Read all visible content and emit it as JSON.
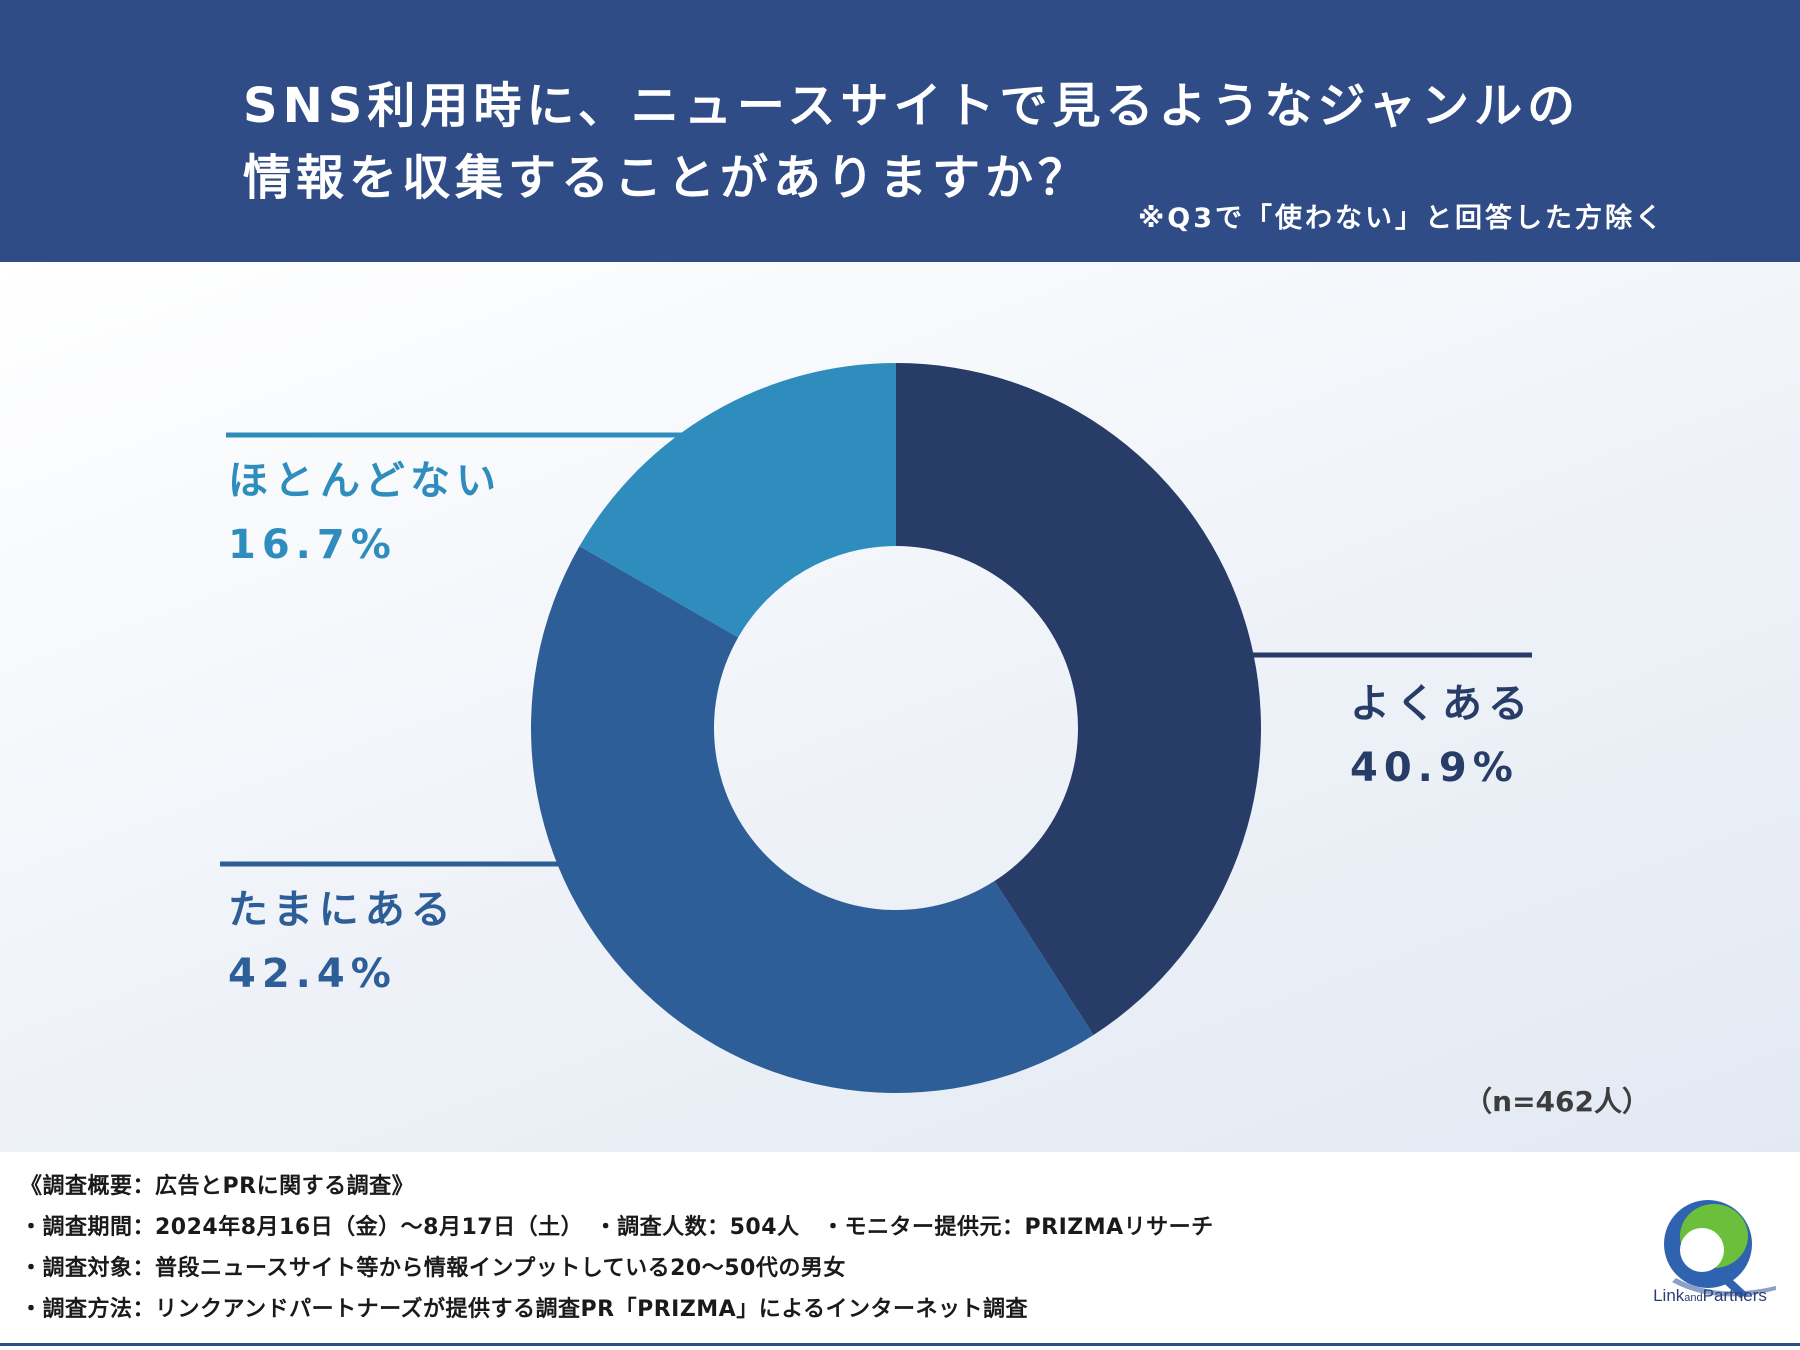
{
  "header": {
    "title_line1": "SNS利用時に、ニュースサイトで見るようなジャンルの",
    "title_line2": "情報を収集することがありますか？",
    "note": "※Q3で「使わない」と回答した方除く"
  },
  "chart_data": {
    "type": "pie",
    "style": "donut",
    "slices": [
      {
        "label": "よくある",
        "value": 40.9,
        "display": "40.9%",
        "color": "#283c68"
      },
      {
        "label": "たまにある",
        "value": 42.4,
        "display": "42.4%",
        "color": "#2e5e98"
      },
      {
        "label": "ほとんどない",
        "value": 16.7,
        "display": "16.7%",
        "color": "#2e8dbd"
      }
    ],
    "sample_size": "（n=462人）"
  },
  "footer": {
    "heading": "《調査概要：広告とPRに関する調査》",
    "line1": "・調査期間：2024年8月16日（金）〜8月17日（土）　・調査人数：504人　・モニター提供元：PRIZMAリサーチ",
    "line2": "・調査対象：普段ニュースサイト等から情報インプットしている20〜50代の男女",
    "line3": "・調査方法：リンクアンドパートナーズが提供する調査PR「PRIZMA」によるインターネット調査"
  },
  "logo": {
    "name_main1": "Link",
    "name_small": "and",
    "name_main2": "Partners"
  }
}
